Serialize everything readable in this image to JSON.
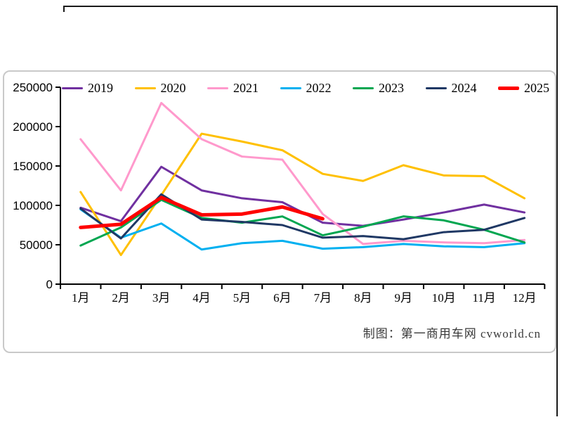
{
  "chart_data": {
    "type": "line",
    "categories": [
      "1月",
      "2月",
      "3月",
      "4月",
      "5月",
      "6月",
      "7月",
      "8月",
      "9月",
      "10月",
      "11月",
      "12月"
    ],
    "xlabel": "",
    "ylabel": "",
    "ylim": [
      0,
      250000
    ],
    "y_ticks": [
      "0",
      "50000",
      "100000",
      "150000",
      "200000",
      "250000"
    ],
    "grid": false,
    "legend_position": "top",
    "axis_color": "#000000",
    "series": [
      {
        "name": "2019",
        "color": "#7030a0",
        "line_width": 3,
        "values": [
          97000,
          80000,
          149000,
          119000,
          109000,
          104000,
          78000,
          74000,
          82000,
          91000,
          101000,
          91000
        ]
      },
      {
        "name": "2020",
        "color": "#ffc000",
        "line_width": 3,
        "values": [
          117000,
          37000,
          113000,
          191000,
          181000,
          170000,
          140000,
          131000,
          151000,
          138000,
          137000,
          109000
        ]
      },
      {
        "name": "2021",
        "color": "#ff99cc",
        "line_width": 3,
        "values": [
          184000,
          119000,
          230000,
          184000,
          162000,
          158000,
          89000,
          51000,
          55000,
          53000,
          52000,
          56000
        ]
      },
      {
        "name": "2022",
        "color": "#00b0f0",
        "line_width": 3,
        "values": [
          95000,
          59000,
          77000,
          44000,
          52000,
          55000,
          45000,
          47000,
          51000,
          48000,
          47000,
          52000
        ]
      },
      {
        "name": "2023",
        "color": "#00a650",
        "line_width": 3,
        "values": [
          49000,
          72000,
          107000,
          84000,
          78000,
          86000,
          62000,
          73000,
          86000,
          81000,
          69000,
          53000
        ]
      },
      {
        "name": "2024",
        "color": "#1f3864",
        "line_width": 3,
        "values": [
          96000,
          58000,
          114000,
          82000,
          79000,
          75000,
          59000,
          61000,
          57000,
          66000,
          69000,
          84000
        ]
      },
      {
        "name": "2025",
        "color": "#ff0000",
        "line_width": 5,
        "values": [
          72000,
          76000,
          110000,
          88000,
          89000,
          98000,
          83000
        ]
      }
    ]
  },
  "caption": {
    "text": "制图：第一商用车网  cvworld.cn"
  }
}
